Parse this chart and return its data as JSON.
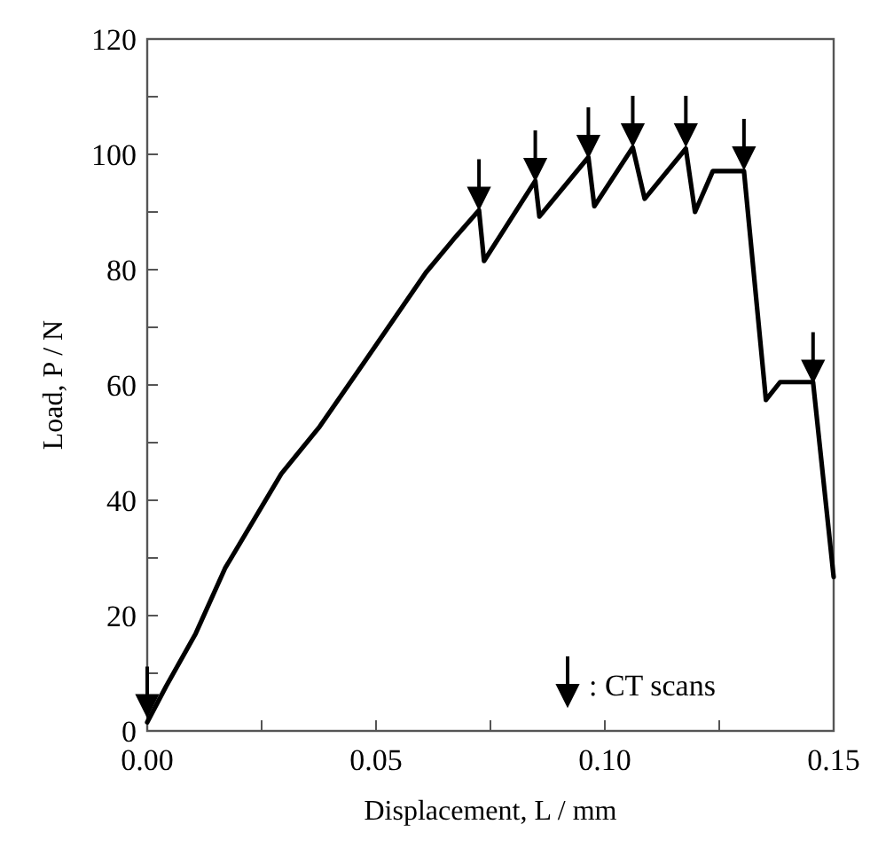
{
  "chart_data": {
    "type": "line",
    "xlabel": "Displacement, L / mm",
    "ylabel": "Load, P / N",
    "xlim": [
      0,
      0.15
    ],
    "ylim": [
      0,
      120
    ],
    "xticks": [
      {
        "value": 0,
        "label": "0.00"
      },
      {
        "value": 0.025,
        "label": null
      },
      {
        "value": 0.05,
        "label": "0.05"
      },
      {
        "value": 0.075,
        "label": null
      },
      {
        "value": 0.1,
        "label": "0.10"
      },
      {
        "value": 0.125,
        "label": null
      },
      {
        "value": 0.15,
        "label": "0.15"
      }
    ],
    "yticks": [
      0,
      {
        "value": 10,
        "label": null
      },
      20,
      {
        "value": 30,
        "label": null
      },
      40,
      {
        "value": 50,
        "label": null
      },
      60,
      {
        "value": 70,
        "label": null
      },
      80,
      {
        "value": 90,
        "label": null
      },
      100,
      {
        "value": 110,
        "label": null
      },
      120
    ],
    "grid": false,
    "legend": "bottom right",
    "line_style": "solid",
    "series": [
      {
        "color": "#000000",
        "x": [
          0,
          0.0041,
          0.0106,
          0.017,
          0.0293,
          0.0377,
          0.0467,
          0.0609,
          0.0674,
          0.0725,
          0.0736,
          0.0848,
          0.0857,
          0.0964,
          0.0977,
          0.1061,
          0.1087,
          0.1177,
          0.1197,
          0.1236,
          0.1304,
          0.1352,
          0.1383,
          0.1455,
          0.15
        ],
        "values": [
          1.5,
          7.7,
          16.9,
          28.2,
          44.6,
          52.8,
          63.1,
          79.5,
          85.7,
          90.3,
          81.5,
          95.4,
          89.2,
          99.5,
          91,
          101.2,
          92.3,
          101,
          90,
          97.1,
          97.1,
          57.4,
          60.5,
          60.5,
          26.7
        ]
      },
      {
        "type": "scatter",
        "name": ": CT scans",
        "marker": "triangle",
        "color": "#000000",
        "x": [
          0,
          0.0725,
          0.0848,
          0.0964,
          0.1061,
          0.1177,
          0.1304,
          0.1455
        ],
        "values": [
          5,
          93,
          98,
          102,
          104,
          104,
          100,
          63
        ]
      }
    ]
  }
}
